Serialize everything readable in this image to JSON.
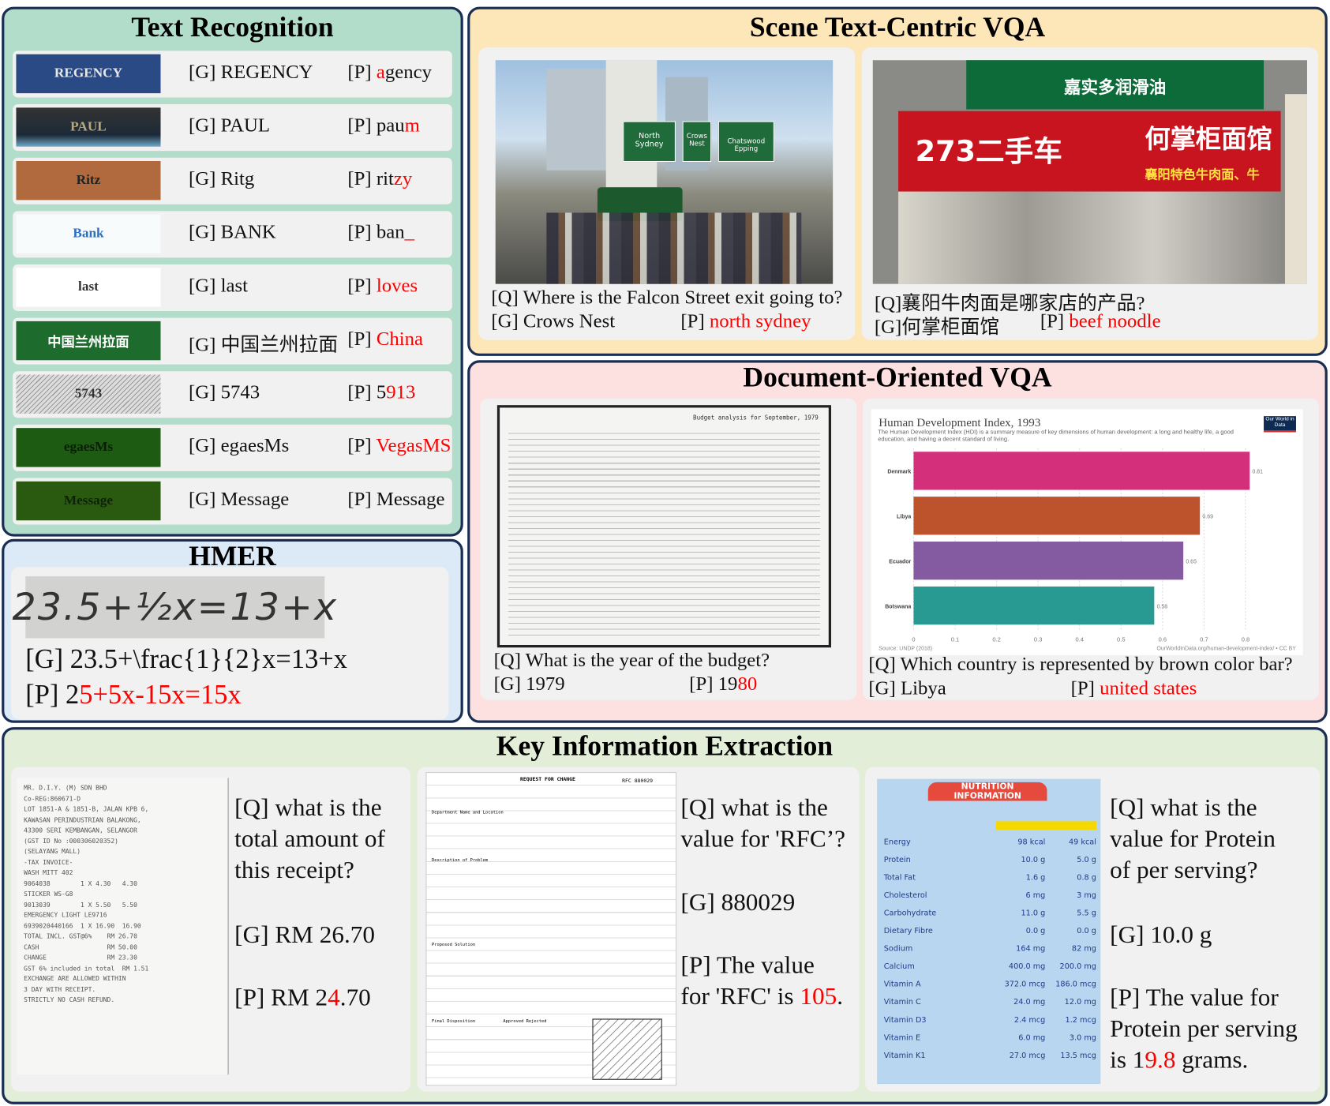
{
  "text_recognition": {
    "title": "Text Recognition",
    "rows": [
      {
        "image_text": "REGENCY",
        "g_label": "[G]",
        "g": "REGENCY",
        "p_label": "[P]",
        "p_err": "a",
        "p_ok": "gency",
        "p_order": "err-first"
      },
      {
        "image_text": "PAUL",
        "g_label": "[G]",
        "g": "PAUL",
        "p_label": "[P]",
        "p_ok": "pau",
        "p_err": "m",
        "p_order": "ok-first"
      },
      {
        "image_text": "Ritz",
        "g_label": "[G]",
        "g": "Ritg",
        "p_label": "[P]",
        "p_ok": "rit",
        "p_err": "zy",
        "p_order": "ok-first"
      },
      {
        "image_text": "Bank",
        "g_label": "[G]",
        "g": "BANK",
        "p_label": "[P]",
        "p_ok": "ban",
        "p_err": "_",
        "p_order": "ok-first"
      },
      {
        "image_text": "last",
        "g_label": "[G]",
        "g": "last",
        "p_label": "[P]",
        "p_ok": "",
        "p_err": "loves",
        "p_order": "ok-first"
      },
      {
        "image_text": "中国兰州拉面",
        "g_label": "[G]",
        "g": "中国兰州拉面",
        "p_label": "[P]",
        "p_ok": "",
        "p_err": "China",
        "p_order": "ok-first"
      },
      {
        "image_text": "5743",
        "g_label": "[G]",
        "g": "5743",
        "p_label": "[P]",
        "p_ok": "5",
        "p_err": "913",
        "p_order": "ok-first"
      },
      {
        "image_text": "egaesMs",
        "g_label": "[G]",
        "g": "egaesMs",
        "p_label": "[P]",
        "p_ok": "",
        "p_err": "VegasMS",
        "p_order": "ok-first"
      },
      {
        "image_text": "Message",
        "g_label": "[G]",
        "g": "Message",
        "p_label": "[P]",
        "p_ok": "Message",
        "p_err": "",
        "p_order": "ok-first"
      }
    ]
  },
  "hmer": {
    "title": "HMER",
    "image_text": "23.5+½x=13+x",
    "g": "[G] 23.5+\\frac{1}{2}x=13+x",
    "p_label": "[P] ",
    "p_ok": "2",
    "p_err": "5+5x-15x=15x"
  },
  "scene_vqa": {
    "title": "Scene Text-Centric VQA",
    "items": [
      {
        "q": "[Q] Where is the Falcon Street exit going to?",
        "g": "[G] Crows Nest",
        "p_label": "[P]",
        "p": "north sydney",
        "signs": [
          "North Sydney",
          "Crows Nest",
          "Chatswood Epping"
        ]
      },
      {
        "q": "[Q]襄阳牛肉面是哪家店的产品?",
        "g": "[G]何掌柜面馆",
        "p_label": "[P]",
        "p": "beef noodle",
        "signs": [
          "嘉实多润滑油",
          "273二手车",
          "何掌柜面馆",
          "襄阳特色牛肉面、牛"
        ]
      }
    ]
  },
  "doc_vqa": {
    "title": "Document-Oriented VQA",
    "items": [
      {
        "q": "[Q] What is the year of the budget?",
        "g": "[G] 1979",
        "p_label": "[P]",
        "p_ok": "19",
        "p_err": "80",
        "doc_heading": "Budget analysis for September, 1979"
      },
      {
        "q": "[Q] Which country is represented by brown color bar?",
        "g": "[G] Libya",
        "p_label": "[P]",
        "p": "united states"
      }
    ]
  },
  "chart_data": {
    "type": "bar",
    "orientation": "horizontal",
    "title": "Human Development Index, 1993",
    "subtitle": "The Human Development Index (HDI) is a summary measure of key dimensions of human development: a long and healthy life, a good education, and having a decent standard of living.",
    "categories": [
      "Denmark",
      "Libya",
      "Ecuador",
      "Botswana"
    ],
    "values": [
      0.81,
      0.69,
      0.65,
      0.58
    ],
    "colors": [
      "#d42f7a",
      "#bc532c",
      "#845ba0",
      "#289a92"
    ],
    "xticks": [
      "0",
      "0.1",
      "0.2",
      "0.3",
      "0.4",
      "0.5",
      "0.6",
      "0.7",
      "0.8"
    ],
    "xlim": [
      0,
      0.85
    ],
    "grid": true,
    "source": "Source: UNDP (2018)",
    "credit": "OurWorldInData.org/human-development-index/ • CC BY",
    "logo": "Our World in Data"
  },
  "kie": {
    "title": "Key Information Extraction",
    "items": [
      {
        "q": [
          "[Q] what is the",
          "total amount of",
          "this receipt?"
        ],
        "g": "[G] RM 26.70",
        "p_ok1": "[P] RM 2",
        "p_err": "4",
        "p_ok2": ".70",
        "doc_lines": [
          "MR. D.I.Y. (M) SDN BHD",
          "Co-REG:860671-D",
          "LOT 1851-A & 1851-B, JALAN KPB 6,",
          "KAWASAN PERINDUSTRIAN BALAKONG,",
          "43300 SERI KEMBANGAN, SELANGOR",
          "(GST ID No :000306020352)",
          "(SELAYANG MALL)",
          "-TAX INVOICE-",
          "",
          "WASH MITT 402",
          "9064038        1 X 4.30   4.30",
          "STICKER WS-G8",
          "9013039        1 X 5.50   5.50",
          "EMERGENCY LIGHT LE9716",
          "6939020440166  1 X 16.90  16.90",
          "",
          "TOTAL INCL. GST@6%    RM 26.70",
          "CASH                  RM 50.00",
          "CHANGE                RM 23.30",
          "",
          "GST 6% included in total  RM 1.51",
          "",
          "EXCHANGE ARE ALLOWED WITHIN",
          "3 DAY WITH RECEIPT.",
          "STRICTLY NO CASH REFUND."
        ]
      },
      {
        "q": [
          "[Q] what is the",
          "value for 'RFC’?"
        ],
        "g": "[G] 880029",
        "p1": "[P] The value",
        "p2_ok": "for 'RFC' is ",
        "p2_err": "105",
        "p2_end": ".",
        "doc_lines": [
          "REQUEST FOR CHANGE",
          "RFC 880029",
          "Department Name and Location",
          "Description of Problem",
          "Proposed Solution",
          "Final Disposition",
          "Approved    Rejected"
        ]
      },
      {
        "q": [
          "[Q] what is the",
          "value for Protein",
          "of per serving?"
        ],
        "g": "[G] 10.0 g",
        "p1": "[P] The value for",
        "p2": "Protein per serving",
        "p3_ok": "is 1",
        "p3_err": "9.8",
        "p3_end": " grams.",
        "label_title": "NUTRITION INFORMATION",
        "label_rows": [
          [
            "Energy",
            "98 kcal",
            "49 kcal"
          ],
          [
            "Protein",
            "10.0 g",
            "5.0 g"
          ],
          [
            "Total Fat",
            "1.6 g",
            "0.8 g"
          ],
          [
            "Cholesterol",
            "6 mg",
            "3 mg"
          ],
          [
            "Carbohydrate",
            "11.0 g",
            "5.5 g"
          ],
          [
            "Dietary Fibre",
            "0.0 g",
            "0.0 g"
          ],
          [
            "Sodium",
            "164 mg",
            "82 mg"
          ],
          [
            "Calcium",
            "400.0 mg",
            "200.0 mg"
          ],
          [
            "Vitamin A",
            "372.0 mcg",
            "186.0 mcg"
          ],
          [
            "Vitamin C",
            "24.0 mg",
            "12.0 mg"
          ],
          [
            "Vitamin D3",
            "2.4 mcg",
            "1.2 mcg"
          ],
          [
            "Vitamin E",
            "6.0 mg",
            "3.0 mg"
          ],
          [
            "Vitamin K1",
            "27.0 mcg",
            "13.5 mcg"
          ]
        ]
      }
    ]
  },
  "colors": {
    "text_recognition_bg": "#b3ddcb",
    "hmer_bg": "#dce9f6",
    "scene_bg": "#fde6b8",
    "doc_bg": "#fde0e0",
    "kie_bg": "#e3eed8",
    "border": "#1a2e55",
    "error": "#ff0000"
  }
}
